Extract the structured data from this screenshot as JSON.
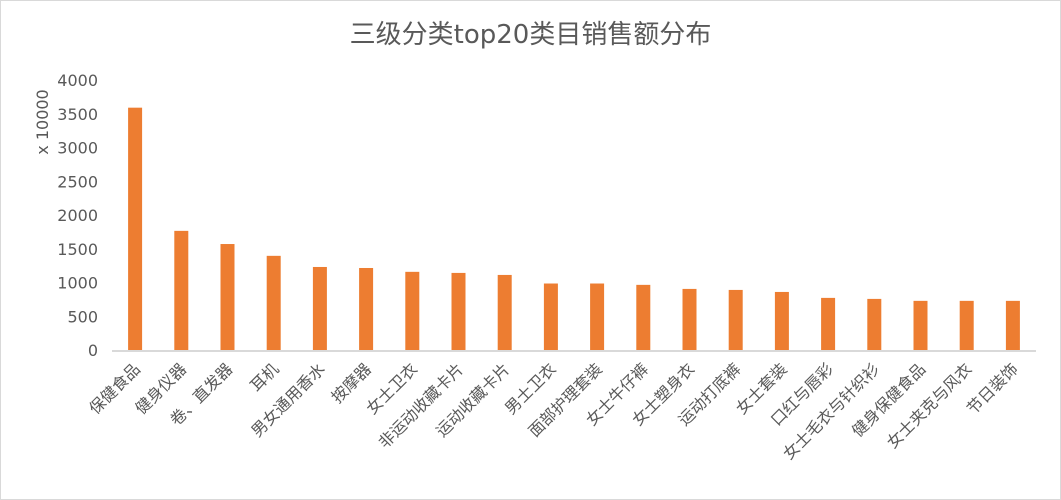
{
  "chart_data": {
    "type": "bar",
    "title": "三级分类top20类目销售额分布",
    "ylabel": "x 10000",
    "xlabel": "",
    "ylim": [
      0,
      4000
    ],
    "yticks": [
      0,
      500,
      1000,
      1500,
      2000,
      2500,
      3000,
      3500,
      4000
    ],
    "grid": false,
    "color": "#ED7D31",
    "categories": [
      "保健食品",
      "健身仪器",
      "卷、直发器",
      "耳机",
      "男女通用香水",
      "按摩器",
      "女士卫衣",
      "非运动收藏卡片",
      "运动收藏卡片",
      "男士卫衣",
      "面部护理套装",
      "女士牛仔裤",
      "女士塑身衣",
      "运动打底裤",
      "女士套装",
      "口红与唇彩",
      "女士毛衣与针织衫",
      "健身保健食品",
      "女士夹克与风衣",
      "节日装饰"
    ],
    "values": [
      3590,
      1765,
      1570,
      1395,
      1230,
      1215,
      1158,
      1142,
      1112,
      985,
      985,
      965,
      905,
      890,
      860,
      772,
      757,
      728,
      728,
      728
    ]
  }
}
